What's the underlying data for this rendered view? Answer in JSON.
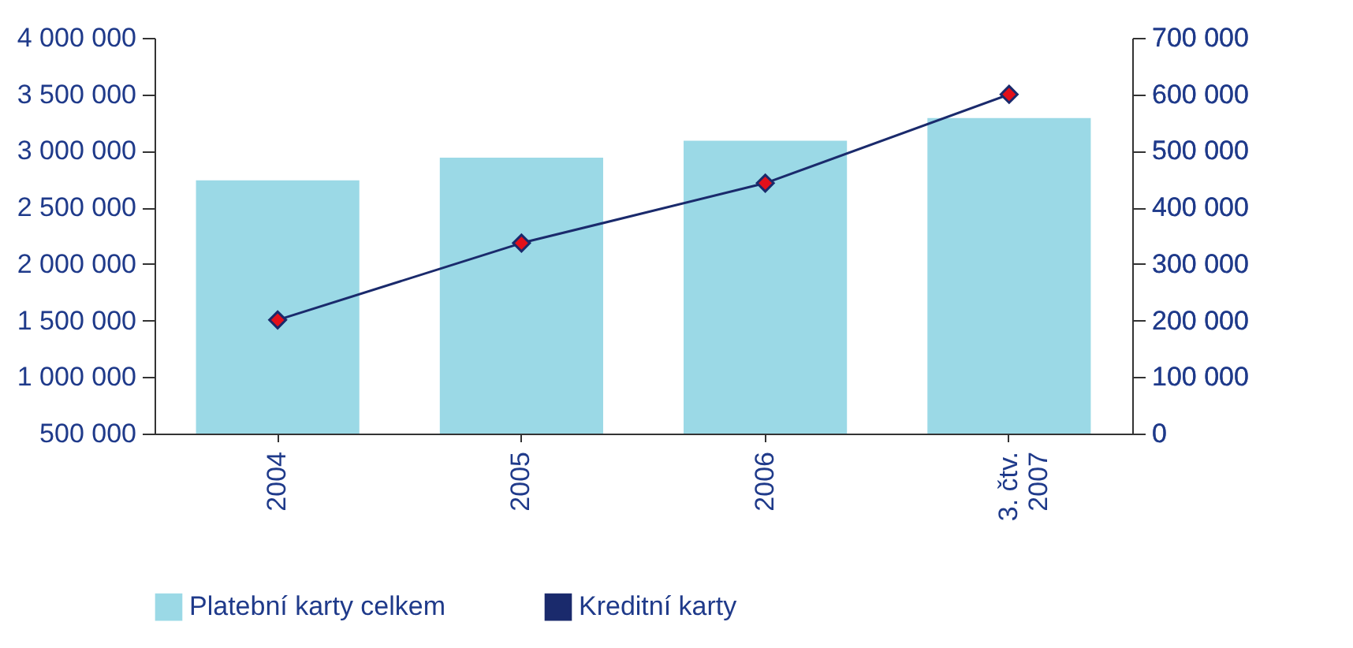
{
  "chart_data": {
    "type": "bar",
    "categories": [
      "2004",
      "2005",
      "2006",
      "3. čtv. 2007"
    ],
    "series": [
      {
        "name": "Platební karty celkem",
        "color": "#9bd9e6",
        "values": [
          2740000,
          2940000,
          3090000,
          3290000
        ]
      },
      {
        "name": "Kreditní karty",
        "type": "line",
        "axis": "y2",
        "color": "#1a2a6c",
        "marker": "diamond",
        "values": [
          201000,
          337000,
          443000,
          600000
        ]
      }
    ],
    "ylim": [
      500000,
      4000000
    ],
    "yticks": [
      {
        "value": 500000,
        "label": "500 000"
      },
      {
        "value": 1000000,
        "label": "1 000 000"
      },
      {
        "value": 1500000,
        "label": "1 500 000"
      },
      {
        "value": 2000000,
        "label": "2 000 000"
      },
      {
        "value": 2500000,
        "label": "2 500 000"
      },
      {
        "value": 3000000,
        "label": "3 000 000"
      },
      {
        "value": 3500000,
        "label": "3 500 000"
      },
      {
        "value": 4000000,
        "label": "4 000 000"
      }
    ],
    "y2lim": [
      0,
      700000
    ],
    "y2ticks": [
      0,
      {
        "value": 100000,
        "label": "100 000"
      },
      {
        "value": 200000,
        "label": "200 000"
      },
      {
        "value": 300000,
        "label": "300 000"
      },
      {
        "value": 400000,
        "label": "400 000"
      },
      {
        "value": 500000,
        "label": "500 000"
      },
      {
        "value": 600000,
        "label": "600 000"
      },
      {
        "value": 700000,
        "label": "700 000"
      }
    ],
    "grid": false,
    "legend": "bottom"
  }
}
